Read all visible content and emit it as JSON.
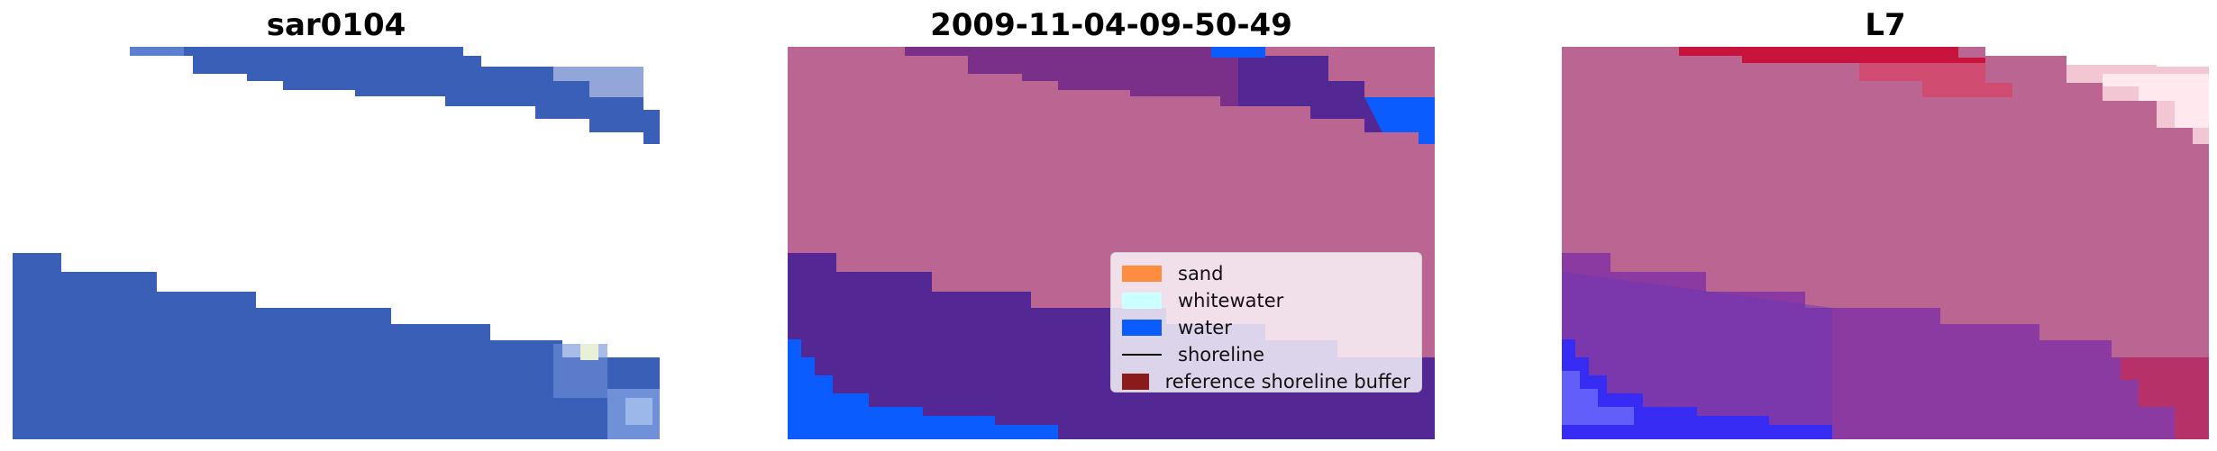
{
  "panels": [
    {
      "title": "sar0104"
    },
    {
      "title": "2009-11-04-09-50-49"
    },
    {
      "title": "L7"
    }
  ],
  "legend": {
    "items": [
      {
        "label": "sand",
        "color": "#ff8c3f",
        "kind": "patch"
      },
      {
        "label": "whitewater",
        "color": "#ccffff",
        "kind": "patch"
      },
      {
        "label": "water",
        "color": "#0a5cff",
        "kind": "patch"
      },
      {
        "label": "shoreline",
        "color": "#000000",
        "kind": "line"
      },
      {
        "label": "reference shoreline buffer",
        "color": "#8b1a1a",
        "kind": "patch"
      }
    ]
  },
  "colors": {
    "sar_blue": "#3a5fb7",
    "overlay_pink": "#bb6593",
    "overlay_purple": "#532895",
    "overlay_water_blue": "#0a5cff",
    "l7_red": "#c8143c"
  }
}
